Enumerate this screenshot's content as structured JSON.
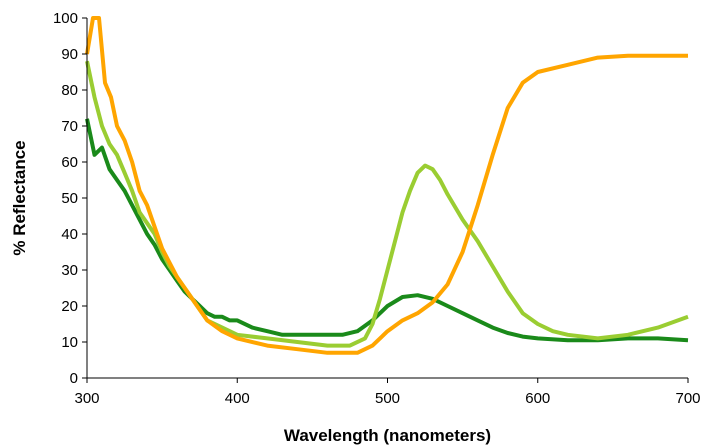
{
  "chart_data": {
    "type": "line",
    "title": "",
    "xlabel": "Wavelength (nanometers)",
    "ylabel": "% Reflectance",
    "xlim": [
      300,
      700
    ],
    "ylim": [
      0,
      100
    ],
    "x_ticks": [
      300,
      400,
      500,
      600,
      700
    ],
    "y_ticks": [
      0,
      10,
      20,
      30,
      40,
      50,
      60,
      70,
      80,
      90,
      100
    ],
    "grid": false,
    "legend": "none",
    "series": [
      {
        "color": "#1a8a1a",
        "points": [
          [
            300,
            72
          ],
          [
            305,
            62
          ],
          [
            310,
            64
          ],
          [
            315,
            58
          ],
          [
            320,
            55
          ],
          [
            325,
            52
          ],
          [
            330,
            48
          ],
          [
            335,
            44
          ],
          [
            340,
            40
          ],
          [
            345,
            37
          ],
          [
            350,
            33
          ],
          [
            355,
            30
          ],
          [
            360,
            27
          ],
          [
            365,
            24
          ],
          [
            370,
            22
          ],
          [
            375,
            20
          ],
          [
            380,
            18
          ],
          [
            385,
            17
          ],
          [
            390,
            17
          ],
          [
            395,
            16
          ],
          [
            400,
            16
          ],
          [
            410,
            14
          ],
          [
            420,
            13
          ],
          [
            430,
            12
          ],
          [
            440,
            12
          ],
          [
            450,
            12
          ],
          [
            460,
            12
          ],
          [
            470,
            12
          ],
          [
            480,
            13
          ],
          [
            490,
            16
          ],
          [
            500,
            20
          ],
          [
            510,
            22.5
          ],
          [
            520,
            23
          ],
          [
            530,
            22
          ],
          [
            540,
            20
          ],
          [
            550,
            18
          ],
          [
            560,
            16
          ],
          [
            570,
            14
          ],
          [
            580,
            12.5
          ],
          [
            590,
            11.5
          ],
          [
            600,
            11
          ],
          [
            620,
            10.5
          ],
          [
            640,
            10.5
          ],
          [
            660,
            11
          ],
          [
            680,
            11
          ],
          [
            700,
            10.5
          ]
        ]
      },
      {
        "color": "#9acd32",
        "points": [
          [
            300,
            88
          ],
          [
            305,
            78
          ],
          [
            310,
            70
          ],
          [
            315,
            65
          ],
          [
            320,
            62
          ],
          [
            325,
            57
          ],
          [
            330,
            52
          ],
          [
            335,
            46
          ],
          [
            340,
            43
          ],
          [
            345,
            40
          ],
          [
            350,
            35
          ],
          [
            355,
            31
          ],
          [
            360,
            28
          ],
          [
            365,
            25
          ],
          [
            370,
            22
          ],
          [
            375,
            19
          ],
          [
            380,
            16
          ],
          [
            390,
            14
          ],
          [
            400,
            12
          ],
          [
            420,
            11
          ],
          [
            440,
            10
          ],
          [
            460,
            9
          ],
          [
            475,
            9
          ],
          [
            485,
            11
          ],
          [
            490,
            15
          ],
          [
            495,
            22
          ],
          [
            500,
            30
          ],
          [
            505,
            38
          ],
          [
            510,
            46
          ],
          [
            515,
            52
          ],
          [
            520,
            57
          ],
          [
            525,
            59
          ],
          [
            530,
            58
          ],
          [
            535,
            55
          ],
          [
            540,
            51
          ],
          [
            550,
            44
          ],
          [
            560,
            38
          ],
          [
            570,
            31
          ],
          [
            580,
            24
          ],
          [
            590,
            18
          ],
          [
            600,
            15
          ],
          [
            610,
            13
          ],
          [
            620,
            12
          ],
          [
            640,
            11
          ],
          [
            660,
            12
          ],
          [
            680,
            14
          ],
          [
            700,
            17
          ]
        ]
      },
      {
        "color": "#ffa500",
        "points": [
          [
            300,
            90
          ],
          [
            304,
            100
          ],
          [
            308,
            100
          ],
          [
            312,
            82
          ],
          [
            316,
            78
          ],
          [
            320,
            70
          ],
          [
            325,
            66
          ],
          [
            330,
            60
          ],
          [
            335,
            52
          ],
          [
            340,
            48
          ],
          [
            345,
            42
          ],
          [
            350,
            36
          ],
          [
            355,
            32
          ],
          [
            360,
            28
          ],
          [
            365,
            25
          ],
          [
            370,
            22
          ],
          [
            375,
            19
          ],
          [
            380,
            16
          ],
          [
            390,
            13
          ],
          [
            400,
            11
          ],
          [
            420,
            9
          ],
          [
            440,
            8
          ],
          [
            460,
            7
          ],
          [
            480,
            7
          ],
          [
            490,
            9
          ],
          [
            500,
            13
          ],
          [
            510,
            16
          ],
          [
            520,
            18
          ],
          [
            530,
            21
          ],
          [
            540,
            26
          ],
          [
            550,
            35
          ],
          [
            560,
            48
          ],
          [
            570,
            62
          ],
          [
            580,
            75
          ],
          [
            590,
            82
          ],
          [
            600,
            85
          ],
          [
            620,
            87
          ],
          [
            640,
            89
          ],
          [
            660,
            89.5
          ],
          [
            680,
            89.5
          ],
          [
            700,
            89.5
          ]
        ]
      }
    ]
  }
}
